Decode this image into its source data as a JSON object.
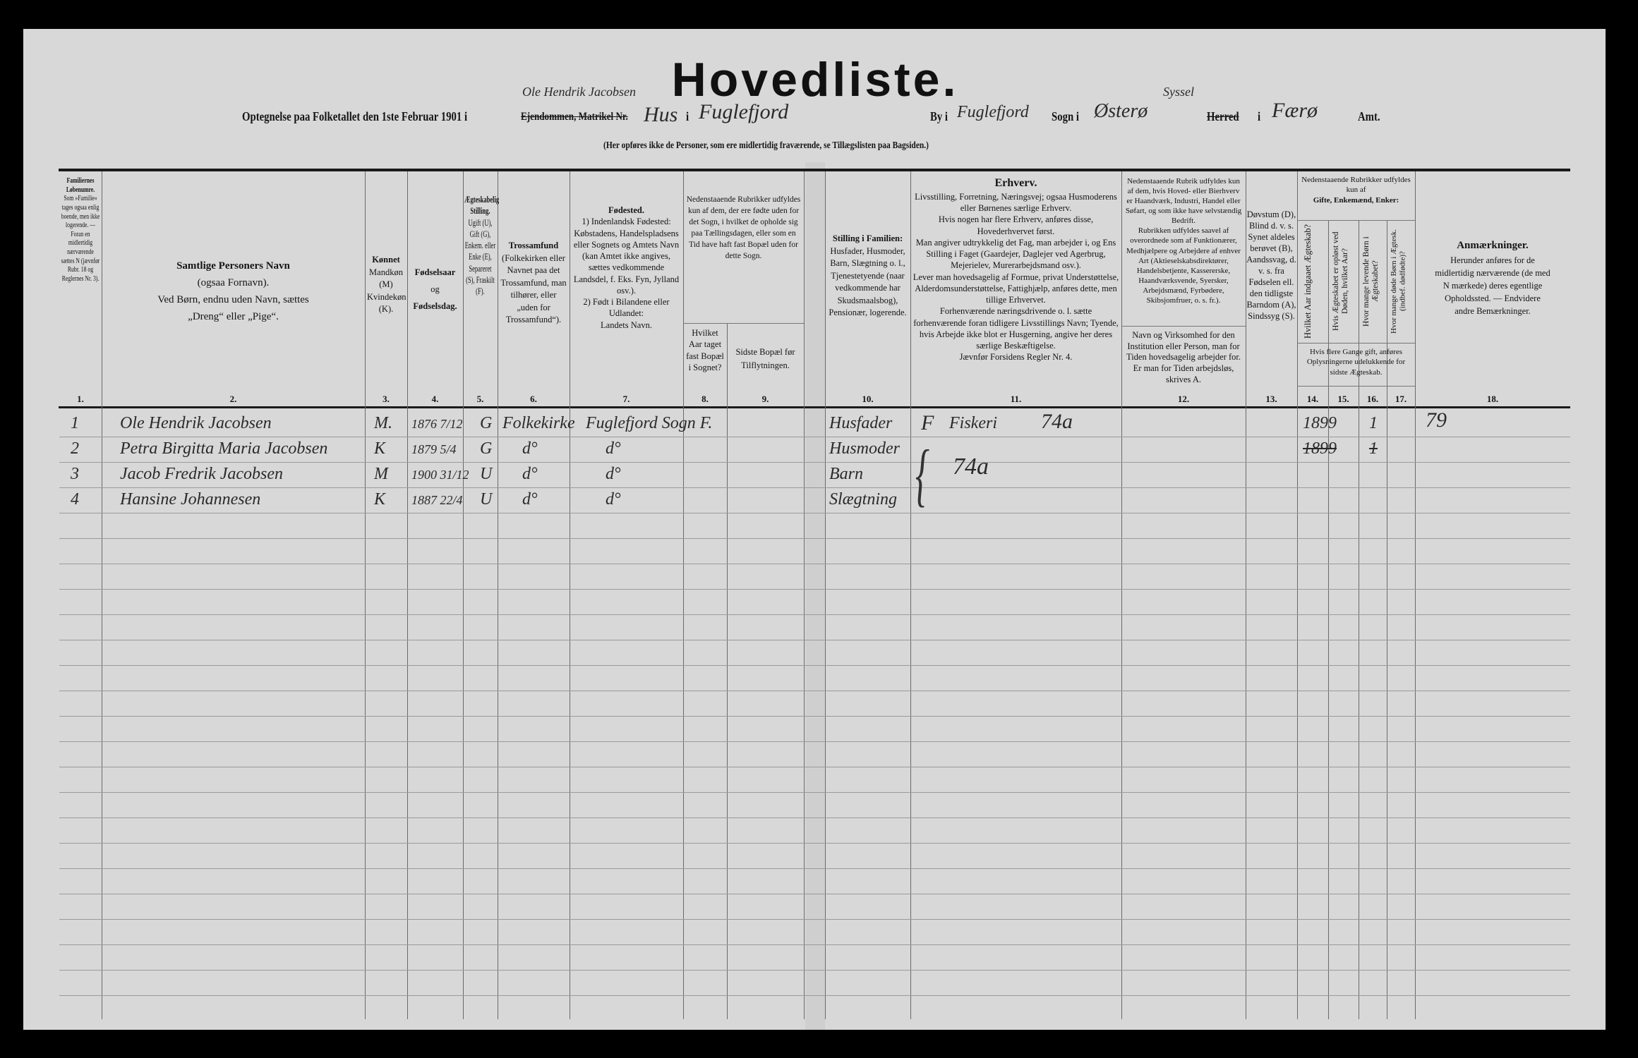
{
  "title": "Hovedliste.",
  "heading": {
    "prefix": "Optegnelse paa Folketallet den 1ste Februar 1901 i",
    "struck_property": "Ejendommen, Matrikel Nr.",
    "owner_handwritten": "Ole Hendrik Jacobsen",
    "property_handwritten": "Hus",
    "i1": "i",
    "place_handwritten": "Fuglefjord",
    "by_label": "By i",
    "by_handwritten": "Fuglefjord",
    "sogn_label": "Sogn i",
    "sogn_handwritten": "Østerø",
    "syssel_handwritten": "Syssel",
    "struck_herred": "Herred",
    "i2": "i",
    "amt_handwritten": "Færø",
    "amt_label": "Amt.",
    "note": "(Her opføres ikke de Personer, som ere midlertidig fraværende, se Tillægslisten paa Bagsiden.)"
  },
  "columns": {
    "c1": {
      "title": "Familiernes Løbenumre.",
      "text": "Som »Familie« tages ogsaa enlig boende, men ikke logerende. — Foran en midlertidig nærværende sættes N (jævnfør Rubr. 18 og Reglernes Nr. 3).",
      "num": "1."
    },
    "c2": {
      "title": "Samtlige Personers Navn",
      "text": "(ogsaa Fornavn).",
      "text2": "Ved Børn, endnu uden Navn, sættes „Dreng“ eller „Pige“.",
      "num": "2."
    },
    "c3": {
      "title": "Kønnet",
      "text": "Mandkøn (M) Kvindekøn (K).",
      "num": "3."
    },
    "c4": {
      "title": "Fødselsaar",
      "text": "og",
      "title2": "Fødselsdag.",
      "num": "4."
    },
    "c5": {
      "title": "Ægteskabelig Stilling.",
      "text": "Ugift (U), Gift (G), Enkem. eller Enke (E), Separeret (S), Fraskilt (F).",
      "num": "5."
    },
    "c6": {
      "title": "Trossamfund",
      "text": "(Folkekirken eller Navnet paa det Trossamfund, man tilhører, eller „uden for Trossamfund“).",
      "num": "6."
    },
    "c7": {
      "title": "Fødested.",
      "text": "1) Indenlandsk Fødested:",
      "text2": "Købstadens, Handelspladsens eller Sognets og Amtets Navn (kan Amtet ikke angives, sættes vedkommende Landsdel, f. Eks. Fyn, Jylland osv.).",
      "text3": "2) Født i Bilandene eller Udlandet:",
      "text4": "Landets Navn.",
      "num": "7."
    },
    "c89": {
      "text": "Nedenstaaende Rubrikker udfyldes kun af dem, der ere fødte uden for det Sogn, i hvilket de opholde sig paa Tællingsdagen, eller som en Tid have haft fast Bopæl uden for dette Sogn."
    },
    "c8": {
      "text": "Hvilket Aar taget fast Bopæl i Sognet?",
      "num": "8."
    },
    "c9": {
      "text": "Sidste Bopæl før Tilflytningen.",
      "num": "9."
    },
    "c10": {
      "title": "Stilling i Familien:",
      "text": "Husfader, Husmoder, Barn, Slægtning o. l., Tjenestetyende (naar vedkommende har Skudsmaalsbog), Pensionær, logerende.",
      "num": "10."
    },
    "c11": {
      "title": "Erhverv.",
      "text": "Livsstilling, Forretning, Næringsvej; ogsaa Husmoderens eller Børnenes særlige Erhverv.",
      "text2": "Hvis nogen har flere Erhverv, anføres disse, Hovederhvervet først.",
      "text3": "Man angiver udtrykkelig det Fag, man arbejder i, og Ens Stilling i Faget (Gaardejer, Daglejer ved Agerbrug, Mejerielev, Murerarbejdsmand osv.).",
      "text4": "Lever man hovedsagelig af Formue, privat Understøttelse, Alderdomsunderstøttelse, Fattighjælp, anføres dette, men tillige Erhvervet.",
      "text5": "Forhenværende næringsdrivende o. l. sætte forhenværende foran tidligere Livsstillings Navn; Tyende, hvis Arbejde ikke blot er Husgerning, angive her deres særlige Beskæftigelse.",
      "text6": "Jævnfør Forsidens Regler Nr. 4.",
      "num": "11."
    },
    "c12": {
      "text": "Nedenstaaende Rubrik udfyldes kun af dem, hvis Hoved- eller Bierhverv er Haandværk, Industri, Handel eller Søfart, og som ikke have selvstændig Bedrift.",
      "text2": "Rubrikken udfyldes saavel af overordnede som af Funktionærer, Medhjælpere og Arbejdere af enhver Art (Aktieselskabsdirektører, Handelsbetjente, Kassererske, Haandværksvende, Syersker, Arbejdsmænd, Fyrbødere, Skibsjomfruer, o. s. fr.).",
      "text3": "Navn og Virksomhed for den Institution eller Person, man for Tiden hovedsagelig arbejder for.",
      "text4": "Er man for Tiden arbejdsløs, skrives A.",
      "num": "12."
    },
    "c13": {
      "text": "Døvstum (D), Blind d. v. s. Synet aldeles berøvet (B), Aandssvag, d. v. s. fra Fødselen ell. den tidligste Barndom (A), Sindssyg (S).",
      "num": "13."
    },
    "c1417": {
      "text": "Nedenstaaende Rubrikker udfyldes kun af",
      "title": "Gifte, Enkemænd, Enker:",
      "bottom": "Hvis flere Gange gift, anføres Oplysningerne udelukkende for sidste Ægteskab."
    },
    "c14": {
      "text": "Hvilket Aar indgaaet Ægteskab?",
      "num": "14."
    },
    "c15": {
      "text": "Hvis Ægteskabet er opløst ved Døden, hvilket Aar?",
      "num": "15."
    },
    "c16": {
      "text": "Hvor mange levende Børn i Ægteskabet?",
      "num": "16."
    },
    "c17": {
      "text": "Hvor mange døde Børn i Ægtesk. (indbef. dødfødte)?",
      "num": "17."
    },
    "c18": {
      "title": "Anmærkninger.",
      "text": "Herunder anføres for de midlertidig nærværende (de med N mærkede) deres egentlige Opholdssted. — Endvidere andre Bemærkninger.",
      "num": "18."
    }
  },
  "rows": [
    {
      "nr": "1",
      "name": "Ole Hendrik Jacobsen",
      "sex": "M.",
      "born": "1876 7/12",
      "civil": "G",
      "faith": "Folkekirke",
      "birthplace": "Fuglefjord Sogn F.",
      "position": "Husfader",
      "occupation_code": "F",
      "occupation": "Fiskeri",
      "occupation_num": "74a",
      "married_year": "1899",
      "living_children": "1",
      "remarks": "79"
    },
    {
      "nr": "2",
      "name": "Petra Birgitta Maria Jacobsen",
      "sex": "K",
      "born": "1879 5/4",
      "civil": "G",
      "faith": "d°",
      "birthplace": "d°",
      "position": "Husmoder",
      "occupation_num": "74a",
      "married_year_struck": "1899",
      "living_children_struck": "1"
    },
    {
      "nr": "3",
      "name": "Jacob Fredrik Jacobsen",
      "sex": "M",
      "born": "1900 31/12",
      "civil": "U",
      "faith": "d°",
      "birthplace": "d°",
      "position": "Barn"
    },
    {
      "nr": "4",
      "name": "Hansine Johannesen",
      "sex": "K",
      "born": "1887 22/4",
      "civil": "U",
      "faith": "d°",
      "birthplace": "d°",
      "position": "Slægtning"
    }
  ]
}
